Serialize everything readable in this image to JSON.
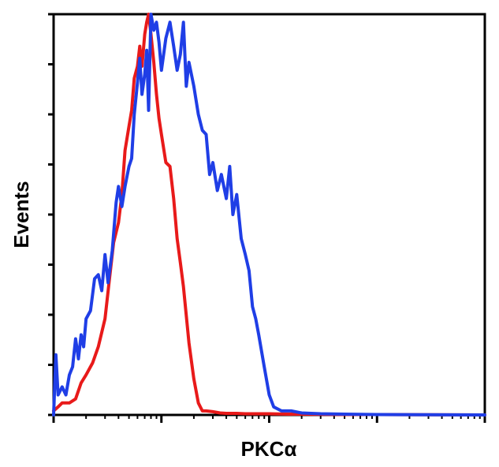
{
  "chart_data": {
    "type": "line",
    "title": "",
    "xlabel": "PKCα",
    "ylabel": "Events",
    "x_scale": "log",
    "xlim": [
      1,
      10000
    ],
    "ylim": [
      0,
      100
    ],
    "grid": false,
    "legend": "none",
    "y_tick_count": 8,
    "series": [
      {
        "color": "#e81a1a",
        "x": [
          1,
          1.1,
          1.2,
          1.4,
          1.6,
          1.8,
          2.0,
          2.3,
          2.6,
          3.0,
          3.3,
          3.6,
          4.0,
          4.3,
          4.6,
          5.0,
          5.3,
          5.6,
          6.0,
          6.3,
          6.6,
          7.0,
          7.3,
          7.6,
          8.0,
          8.5,
          9.0,
          9.5,
          10,
          11,
          12,
          13,
          14,
          15,
          16,
          18,
          20,
          22,
          24,
          26,
          30,
          35,
          40,
          50,
          60,
          80,
          100,
          150,
          200,
          500,
          1000,
          10000
        ],
        "y": [
          1,
          2,
          3,
          3,
          4,
          8,
          10,
          13,
          17,
          24,
          34,
          43,
          48,
          55,
          66,
          72,
          76,
          84,
          87,
          92,
          87,
          95,
          98,
          100,
          95,
          88,
          80,
          74,
          70,
          63,
          62,
          54,
          44,
          38,
          32,
          18,
          9,
          3,
          1,
          1,
          0.8,
          0.5,
          0.4,
          0.4,
          0.3,
          0.3,
          0.3,
          0.2,
          0.2,
          0.1,
          0.1,
          0
        ]
      },
      {
        "color": "#1f3ee6",
        "x": [
          1,
          1.05,
          1.1,
          1.2,
          1.3,
          1.4,
          1.5,
          1.6,
          1.7,
          1.8,
          1.9,
          2.0,
          2.2,
          2.4,
          2.6,
          2.8,
          3.0,
          3.2,
          3.5,
          3.8,
          4.0,
          4.3,
          4.6,
          5.0,
          5.3,
          5.6,
          6.0,
          6.3,
          6.6,
          7.0,
          7.3,
          7.6,
          8.0,
          8.5,
          9.0,
          9.5,
          10,
          11,
          12,
          13,
          14,
          15,
          16,
          17,
          18,
          20,
          22,
          24,
          26,
          28,
          30,
          33,
          36,
          40,
          43,
          46,
          50,
          55,
          60,
          65,
          70,
          75,
          80,
          90,
          100,
          110,
          130,
          160,
          200,
          300,
          500,
          1000,
          10000
        ],
        "y": [
          0,
          15,
          5,
          7,
          5,
          10,
          12,
          19,
          14,
          20,
          17,
          24,
          26,
          34,
          35,
          31,
          40,
          33,
          41,
          53,
          57,
          52,
          57,
          62,
          64,
          75,
          83,
          89,
          80,
          85,
          91,
          76,
          100,
          96,
          98,
          93,
          86,
          94,
          98,
          92,
          86,
          90,
          98,
          82,
          88,
          82,
          75,
          71,
          70,
          60,
          63,
          56,
          60,
          54,
          62,
          50,
          55,
          44,
          40,
          36,
          27,
          24,
          20,
          12,
          5,
          2,
          1,
          1,
          0.5,
          0.3,
          0.2,
          0.1,
          0
        ]
      }
    ]
  }
}
